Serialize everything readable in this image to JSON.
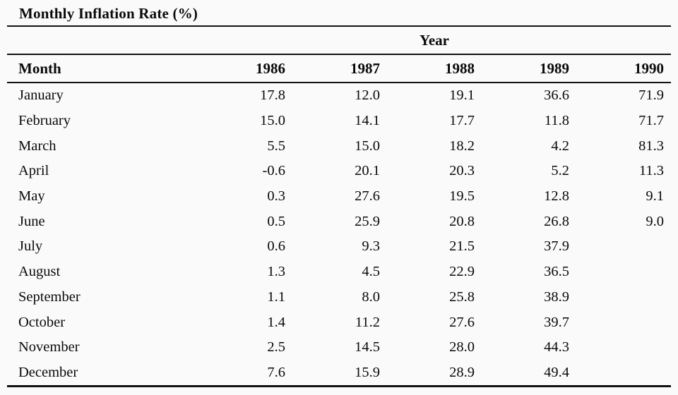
{
  "table": {
    "title": "Monthly Inflation Rate (%)",
    "group_header": "Year",
    "month_header": "Month",
    "years": [
      "1986",
      "1987",
      "1988",
      "1989",
      "1990"
    ],
    "rows": [
      {
        "month": "January",
        "values": [
          "17.8",
          "12.0",
          "19.1",
          "36.6",
          "71.9"
        ]
      },
      {
        "month": "February",
        "values": [
          "15.0",
          "14.1",
          "17.7",
          "11.8",
          "71.7"
        ]
      },
      {
        "month": "March",
        "values": [
          "5.5",
          "15.0",
          "18.2",
          "4.2",
          "81.3"
        ]
      },
      {
        "month": "April",
        "values": [
          "-0.6",
          "20.1",
          "20.3",
          "5.2",
          "11.3"
        ]
      },
      {
        "month": "May",
        "values": [
          "0.3",
          "27.6",
          "19.5",
          "12.8",
          "9.1"
        ]
      },
      {
        "month": "June",
        "values": [
          "0.5",
          "25.9",
          "20.8",
          "26.8",
          "9.0"
        ]
      },
      {
        "month": "July",
        "values": [
          "0.6",
          "9.3",
          "21.5",
          "37.9",
          ""
        ]
      },
      {
        "month": "August",
        "values": [
          "1.3",
          "4.5",
          "22.9",
          "36.5",
          ""
        ]
      },
      {
        "month": "September",
        "values": [
          "1.1",
          "8.0",
          "25.8",
          "38.9",
          ""
        ]
      },
      {
        "month": "October",
        "values": [
          "1.4",
          "11.2",
          "27.6",
          "39.7",
          ""
        ]
      },
      {
        "month": "November",
        "values": [
          "2.5",
          "14.5",
          "28.0",
          "44.3",
          ""
        ]
      },
      {
        "month": "December",
        "values": [
          "7.6",
          "15.9",
          "28.9",
          "49.4",
          ""
        ]
      }
    ]
  },
  "chart_data": {
    "type": "table",
    "title": "Monthly Inflation Rate (%)",
    "group_header": "Year",
    "row_header": "Month",
    "columns": [
      "1986",
      "1987",
      "1988",
      "1989",
      "1990"
    ],
    "categories": [
      "January",
      "February",
      "March",
      "April",
      "May",
      "June",
      "July",
      "August",
      "September",
      "October",
      "November",
      "December"
    ],
    "series": [
      {
        "name": "1986",
        "values": [
          17.8,
          15.0,
          5.5,
          -0.6,
          0.3,
          0.5,
          0.6,
          1.3,
          1.1,
          1.4,
          2.5,
          7.6
        ]
      },
      {
        "name": "1987",
        "values": [
          12.0,
          14.1,
          15.0,
          20.1,
          27.6,
          25.9,
          9.3,
          4.5,
          8.0,
          11.2,
          14.5,
          15.9
        ]
      },
      {
        "name": "1988",
        "values": [
          19.1,
          17.7,
          18.2,
          20.3,
          19.5,
          20.8,
          21.5,
          22.9,
          25.8,
          27.6,
          28.0,
          28.9
        ]
      },
      {
        "name": "1989",
        "values": [
          36.6,
          11.8,
          4.2,
          5.2,
          12.8,
          26.8,
          37.9,
          36.5,
          38.9,
          39.7,
          44.3,
          49.4
        ]
      },
      {
        "name": "1990",
        "values": [
          71.9,
          71.7,
          81.3,
          11.3,
          9.1,
          9.0,
          null,
          null,
          null,
          null,
          null,
          null
        ]
      }
    ]
  },
  "style": {
    "background": "#fafafa",
    "text_color": "#0a0a0a",
    "rule_color": "#111111"
  }
}
